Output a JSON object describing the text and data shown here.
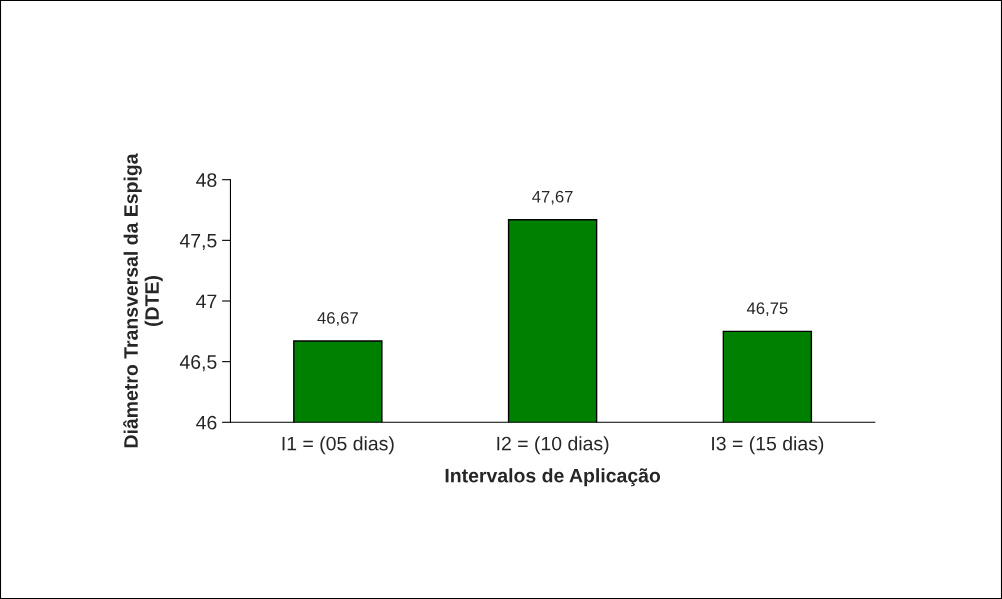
{
  "chart_data": {
    "type": "bar",
    "categories": [
      "I1 = (05 dias)",
      "I2 = (10 dias)",
      "I3 = (15 dias)"
    ],
    "values": [
      46.67,
      47.67,
      46.75
    ],
    "value_labels": [
      "46,67",
      "47,67",
      "46,75"
    ],
    "color": "#008000",
    "xlabel": "Intervalos de Aplicação",
    "ylabel": "Diâmetro Transversal da Espiga\n(DTE)",
    "ylim": [
      46,
      48
    ],
    "yticks": [
      46,
      {
        "value": 46.5,
        "label": "46,5"
      },
      47,
      {
        "value": 47.5,
        "label": "47,5"
      },
      48
    ]
  }
}
